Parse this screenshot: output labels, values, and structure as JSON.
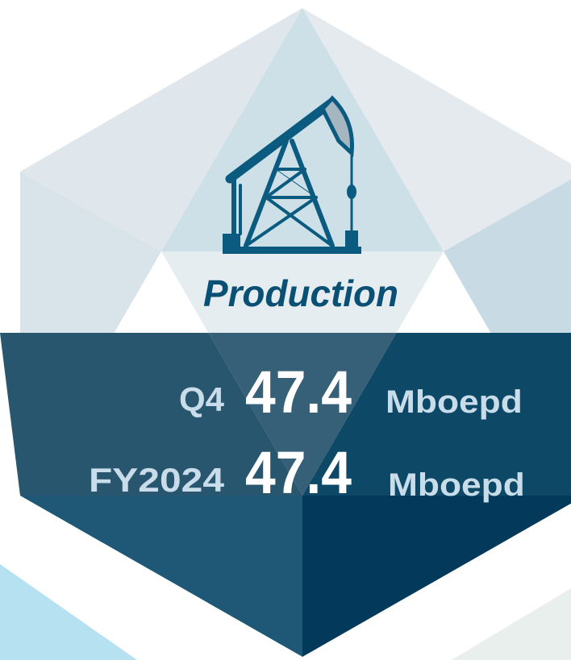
{
  "title": "Production",
  "rows": [
    {
      "period": "Q4",
      "value": 47.4,
      "unit": "Mboepd"
    },
    {
      "period": "FY2024",
      "value": 47.4,
      "unit": "Mboepd"
    }
  ]
}
